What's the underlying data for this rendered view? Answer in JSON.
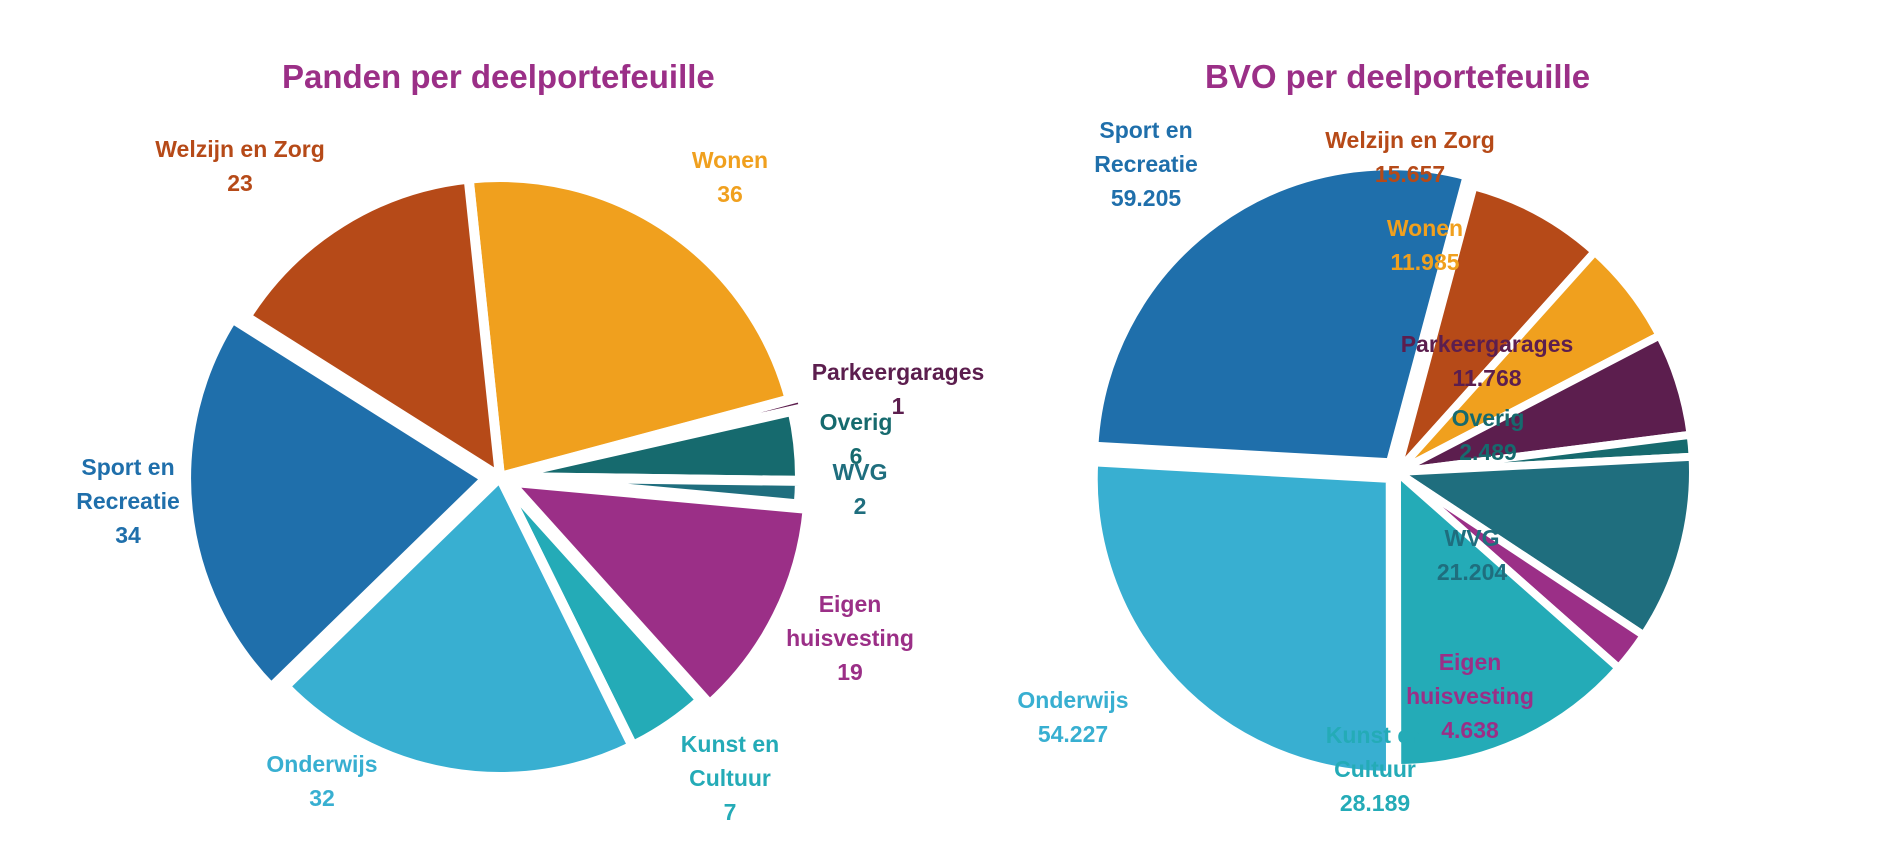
{
  "chart_data": [
    {
      "type": "pie",
      "title": "Panden per deelportefeuille",
      "slices": [
        {
          "label": "Wonen",
          "label_lines": [
            "Wonen"
          ],
          "value": 36,
          "display_value": "36",
          "color": "#f0a01e"
        },
        {
          "label": "Parkeergarages",
          "label_lines": [
            "Parkeergarages"
          ],
          "value": 1,
          "display_value": "1",
          "color": "#5c1e4e"
        },
        {
          "label": "Overig",
          "label_lines": [
            "Overig"
          ],
          "value": 6,
          "display_value": "6",
          "color": "#166a6e"
        },
        {
          "label": "WVG",
          "label_lines": [
            "WVG"
          ],
          "value": 2,
          "display_value": "2",
          "color": "#1f6e7e"
        },
        {
          "label": "Eigen huisvesting",
          "label_lines": [
            "Eigen",
            "huisvesting"
          ],
          "value": 19,
          "display_value": "19",
          "color": "#9b2f87"
        },
        {
          "label": "Kunst en Cultuur",
          "label_lines": [
            "Kunst en",
            "Cultuur"
          ],
          "value": 7,
          "display_value": "7",
          "color": "#24abb7"
        },
        {
          "label": "Onderwijs",
          "label_lines": [
            "Onderwijs"
          ],
          "value": 32,
          "display_value": "32",
          "color": "#38afd1"
        },
        {
          "label": "Sport en Recreatie",
          "label_lines": [
            "Sport en",
            "Recreatie"
          ],
          "value": 34,
          "display_value": "34",
          "color": "#1f6fab"
        },
        {
          "label": "Welzijn en Zorg",
          "label_lines": [
            "Welzijn en Zorg"
          ],
          "value": 23,
          "display_value": "23",
          "color": "#b64a18"
        }
      ]
    },
    {
      "type": "pie",
      "title": "BVO per deelportefeuille",
      "slices": [
        {
          "label": "Welzijn en Zorg",
          "label_lines": [
            "Welzijn en Zorg"
          ],
          "value": 15657,
          "display_value": "15.657",
          "color": "#b64a18"
        },
        {
          "label": "Wonen",
          "label_lines": [
            "Wonen"
          ],
          "value": 11985,
          "display_value": "11.985",
          "color": "#f0a01e"
        },
        {
          "label": "Parkeergarages",
          "label_lines": [
            "Parkeergarages"
          ],
          "value": 11768,
          "display_value": "11.768",
          "color": "#5c1e4e"
        },
        {
          "label": "Overig",
          "label_lines": [
            "Overig"
          ],
          "value": 2489,
          "display_value": "2.489",
          "color": "#166a6e"
        },
        {
          "label": "WVG",
          "label_lines": [
            "WVG"
          ],
          "value": 21204,
          "display_value": "21.204",
          "color": "#1f6e7e"
        },
        {
          "label": "Eigen huisvesting",
          "label_lines": [
            "Eigen",
            "huisvesting"
          ],
          "value": 4638,
          "display_value": "4.638",
          "color": "#9b2f87"
        },
        {
          "label": "Kunst en Cultuur",
          "label_lines": [
            "Kunst en",
            "Cultuur"
          ],
          "value": 28189,
          "display_value": "28.189",
          "color": "#24abb7"
        },
        {
          "label": "Onderwijs",
          "label_lines": [
            "Onderwijs"
          ],
          "value": 54227,
          "display_value": "54.227",
          "color": "#38afd1"
        },
        {
          "label": "Sport en Recreatie",
          "label_lines": [
            "Sport en",
            "Recreatie"
          ],
          "value": 59205,
          "display_value": "59.205",
          "color": "#1f6fab"
        }
      ]
    }
  ]
}
